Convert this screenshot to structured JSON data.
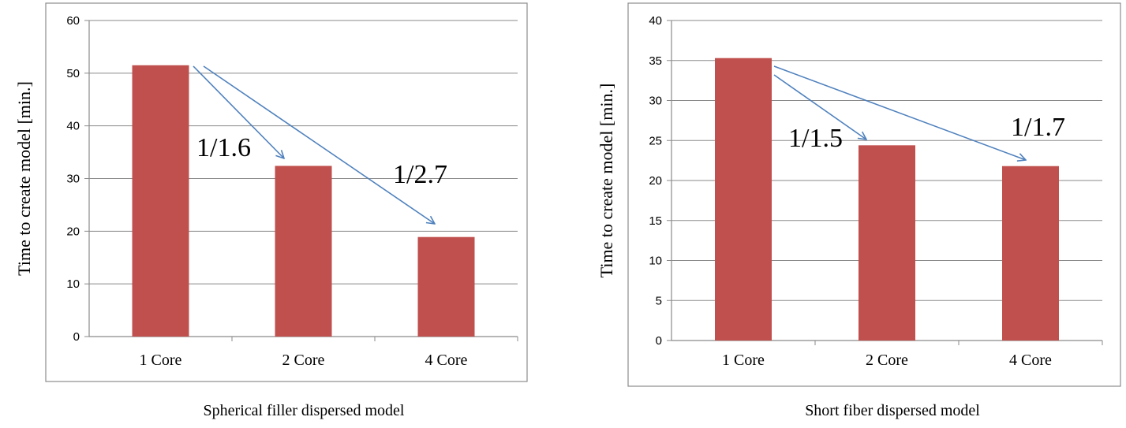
{
  "chart_data": [
    {
      "type": "bar",
      "categories": [
        "1 Core",
        "2 Core",
        "4 Core"
      ],
      "values": [
        51.5,
        32.4,
        18.9
      ],
      "ylabel": "Time to create model [min.]",
      "xlabel": "Spherical filler dispersed model",
      "ylim": [
        0,
        60
      ],
      "yticks": [
        0,
        10,
        20,
        30,
        40,
        50,
        60
      ],
      "grid": true,
      "bar_color": "#C0504D",
      "arrow_color": "#4F81BD",
      "annotations": [
        {
          "text": "1/1.6",
          "from": "1 Core",
          "to": "2 Core"
        },
        {
          "text": "1/2.7",
          "from": "1 Core",
          "to": "4 Core"
        }
      ]
    },
    {
      "type": "bar",
      "categories": [
        "1 Core",
        "2 Core",
        "4 Core"
      ],
      "values": [
        35.3,
        24.4,
        21.8
      ],
      "ylabel": "Time to create model [min.]",
      "xlabel": "Short fiber dispersed model",
      "ylim": [
        0,
        40
      ],
      "yticks": [
        0,
        5,
        10,
        15,
        20,
        25,
        30,
        35,
        40
      ],
      "grid": true,
      "bar_color": "#C0504D",
      "arrow_color": "#4F81BD",
      "annotations": [
        {
          "text": "1/1.5",
          "from": "1 Core",
          "to": "2 Core"
        },
        {
          "text": "1/1.7",
          "from": "1 Core",
          "to": "4 Core"
        }
      ]
    }
  ]
}
